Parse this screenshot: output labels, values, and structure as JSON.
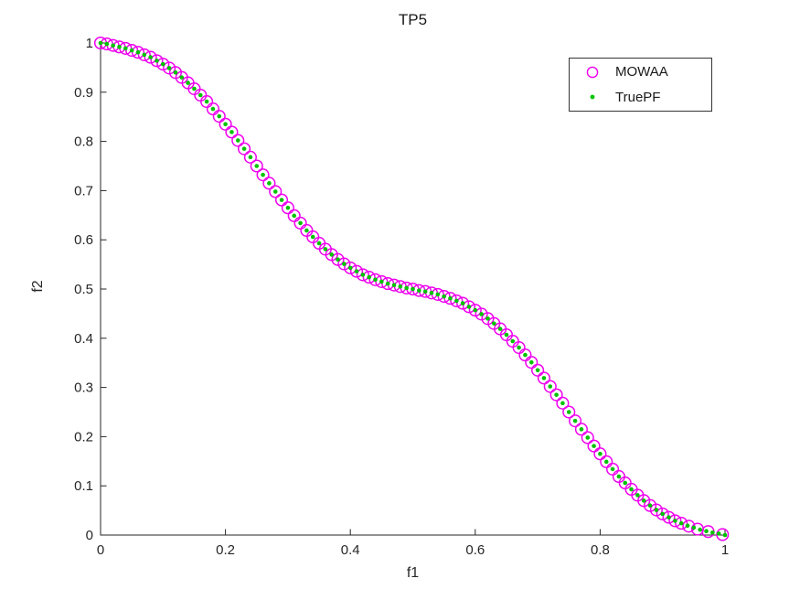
{
  "chart_data": {
    "type": "scatter",
    "title": "TP5",
    "xlabel": "f1",
    "ylabel": "f2",
    "xlim": [
      0,
      1
    ],
    "ylim": [
      0,
      1
    ],
    "grid": false,
    "box": false,
    "tick_direction": "in",
    "axis_color": "#262626",
    "xticks": [
      0,
      0.2,
      0.4,
      0.6,
      0.8,
      1
    ],
    "xticklabels": [
      "0",
      "0.2",
      "0.4",
      "0.6",
      "0.8",
      "1"
    ],
    "yticks": [
      0,
      0.1,
      0.2,
      0.3,
      0.4,
      0.5,
      0.6,
      0.7,
      0.8,
      0.9,
      1
    ],
    "yticklabels": [
      "0",
      "0.1",
      "0.2",
      "0.3",
      "0.4",
      "0.5",
      "0.6",
      "0.7",
      "0.8",
      "0.9",
      "1"
    ],
    "legend": {
      "position": "northeast",
      "entries": [
        {
          "label": "MOWAA",
          "marker": "open-circle",
          "color": "#ee00ee"
        },
        {
          "label": "TruePF",
          "marker": "dot",
          "color": "#00c300"
        }
      ]
    },
    "series": [
      {
        "name": "MOWAA",
        "marker": "open-circle",
        "color": "#ee00ee",
        "marker_radius_px": 6.3,
        "x": [
          0,
          0.01,
          0.02,
          0.03,
          0.04,
          0.05,
          0.06,
          0.07,
          0.08,
          0.09,
          0.1,
          0.11,
          0.12,
          0.13,
          0.14,
          0.15,
          0.16,
          0.17,
          0.18,
          0.19,
          0.2,
          0.21,
          0.22,
          0.23,
          0.24,
          0.25,
          0.26,
          0.27,
          0.28,
          0.29,
          0.3,
          0.31,
          0.32,
          0.33,
          0.34,
          0.35,
          0.36,
          0.37,
          0.38,
          0.39,
          0.4,
          0.41,
          0.42,
          0.43,
          0.44,
          0.45,
          0.46,
          0.47,
          0.48,
          0.49,
          0.5,
          0.51,
          0.52,
          0.53,
          0.54,
          0.55,
          0.56,
          0.57,
          0.58,
          0.59,
          0.6,
          0.61,
          0.62,
          0.63,
          0.64,
          0.65,
          0.66,
          0.67,
          0.68,
          0.69,
          0.7,
          0.71,
          0.72,
          0.73,
          0.74,
          0.75,
          0.76,
          0.77,
          0.78,
          0.79,
          0.8,
          0.81,
          0.82,
          0.83,
          0.84,
          0.85,
          0.86,
          0.87,
          0.88,
          0.89,
          0.9,
          0.91,
          0.92,
          0.93,
          0.942,
          0.956,
          0.973,
          0.996
        ],
        "y": [
          1,
          0.998,
          0.995,
          0.992,
          0.989,
          0.985,
          0.981,
          0.976,
          0.971,
          0.964,
          0.957,
          0.949,
          0.94,
          0.93,
          0.919,
          0.907,
          0.894,
          0.881,
          0.866,
          0.851,
          0.835,
          0.819,
          0.802,
          0.785,
          0.768,
          0.75,
          0.732,
          0.715,
          0.698,
          0.681,
          0.665,
          0.649,
          0.634,
          0.619,
          0.606,
          0.593,
          0.581,
          0.57,
          0.56,
          0.551,
          0.543,
          0.536,
          0.529,
          0.524,
          0.519,
          0.515,
          0.511,
          0.508,
          0.505,
          0.502,
          0.5,
          0.497,
          0.495,
          0.492,
          0.489,
          0.485,
          0.481,
          0.476,
          0.471,
          0.464,
          0.457,
          0.449,
          0.44,
          0.43,
          0.419,
          0.407,
          0.394,
          0.381,
          0.366,
          0.351,
          0.335,
          0.319,
          0.302,
          0.285,
          0.268,
          0.25,
          0.232,
          0.215,
          0.198,
          0.181,
          0.165,
          0.149,
          0.134,
          0.119,
          0.106,
          0.093,
          0.081,
          0.07,
          0.06,
          0.051,
          0.043,
          0.036,
          0.029,
          0.024,
          0.018,
          0.012,
          0.007,
          0.001
        ]
      },
      {
        "name": "TruePF",
        "marker": "dot",
        "color": "#00c300",
        "marker_radius_px": 2.3,
        "x": [
          0,
          0.01,
          0.02,
          0.03,
          0.04,
          0.05,
          0.06,
          0.07,
          0.08,
          0.09,
          0.1,
          0.11,
          0.12,
          0.13,
          0.14,
          0.15,
          0.16,
          0.17,
          0.18,
          0.19,
          0.2,
          0.21,
          0.22,
          0.23,
          0.24,
          0.25,
          0.26,
          0.27,
          0.28,
          0.29,
          0.3,
          0.31,
          0.32,
          0.33,
          0.34,
          0.35,
          0.36,
          0.37,
          0.38,
          0.39,
          0.4,
          0.41,
          0.42,
          0.43,
          0.44,
          0.45,
          0.46,
          0.47,
          0.48,
          0.49,
          0.5,
          0.51,
          0.52,
          0.53,
          0.54,
          0.55,
          0.56,
          0.57,
          0.58,
          0.59,
          0.6,
          0.61,
          0.62,
          0.63,
          0.64,
          0.65,
          0.66,
          0.67,
          0.68,
          0.69,
          0.7,
          0.71,
          0.72,
          0.73,
          0.74,
          0.75,
          0.76,
          0.77,
          0.78,
          0.79,
          0.8,
          0.81,
          0.82,
          0.83,
          0.84,
          0.85,
          0.86,
          0.87,
          0.88,
          0.89,
          0.9,
          0.91,
          0.92,
          0.93,
          0.94,
          0.95,
          0.96,
          0.97,
          0.98,
          0.99,
          1
        ],
        "y": [
          1,
          0.998,
          0.995,
          0.992,
          0.989,
          0.985,
          0.981,
          0.976,
          0.971,
          0.964,
          0.957,
          0.949,
          0.94,
          0.93,
          0.919,
          0.907,
          0.894,
          0.881,
          0.866,
          0.851,
          0.835,
          0.819,
          0.802,
          0.785,
          0.768,
          0.75,
          0.732,
          0.715,
          0.698,
          0.681,
          0.665,
          0.649,
          0.634,
          0.619,
          0.606,
          0.593,
          0.581,
          0.57,
          0.56,
          0.551,
          0.543,
          0.536,
          0.529,
          0.524,
          0.519,
          0.515,
          0.511,
          0.508,
          0.505,
          0.502,
          0.5,
          0.497,
          0.495,
          0.492,
          0.489,
          0.485,
          0.481,
          0.476,
          0.471,
          0.464,
          0.457,
          0.449,
          0.44,
          0.43,
          0.419,
          0.407,
          0.394,
          0.381,
          0.366,
          0.351,
          0.335,
          0.319,
          0.302,
          0.285,
          0.268,
          0.25,
          0.232,
          0.215,
          0.198,
          0.181,
          0.165,
          0.149,
          0.134,
          0.119,
          0.106,
          0.093,
          0.081,
          0.07,
          0.06,
          0.051,
          0.043,
          0.036,
          0.029,
          0.024,
          0.019,
          0.015,
          0.011,
          0.008,
          0.005,
          0.003,
          0
        ]
      }
    ]
  }
}
